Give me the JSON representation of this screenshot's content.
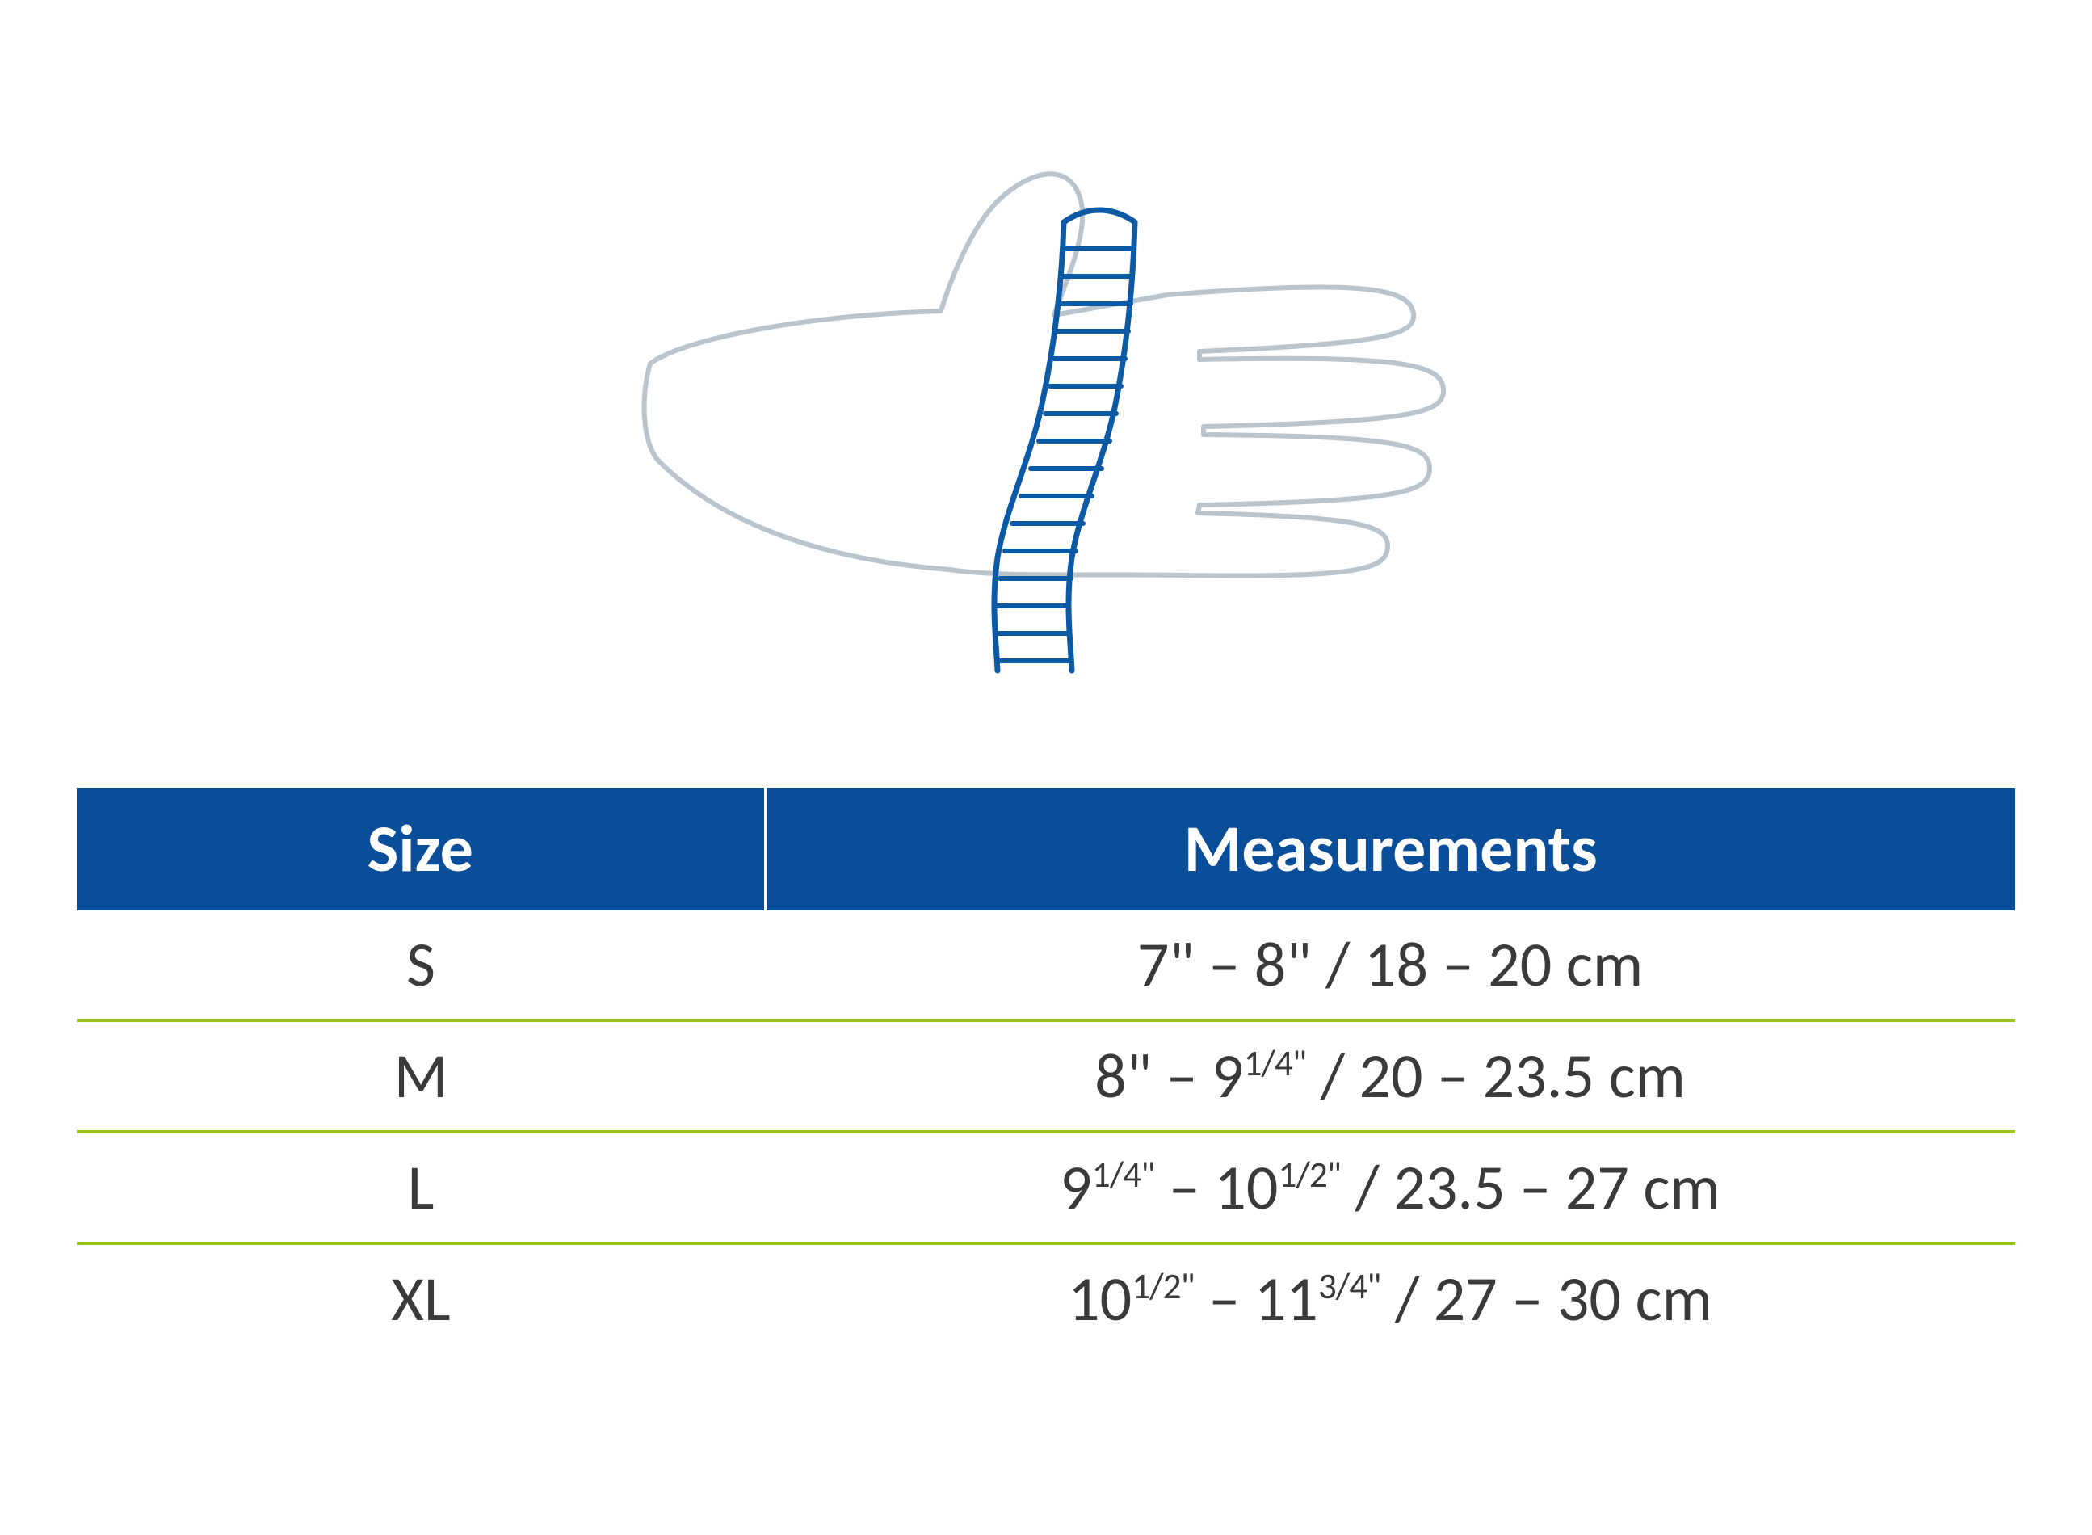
{
  "diagram": {
    "hand_outline_color": "#b9c4cc",
    "hand_outline_width": 6,
    "tape_stroke_color": "#0c5aa6",
    "tape_stroke_width": 7,
    "tape_fill_color": "#ffffff"
  },
  "table": {
    "header_bg_color": "#0a4d99",
    "header_text_color": "#ffffff",
    "header_font_size": 82,
    "header_font_weight": 700,
    "body_font_size": 78,
    "body_text_color": "#3a3a3a",
    "row_divider_color": "#98c21d",
    "row_divider_width": 4,
    "columns": [
      "Size",
      "Measurements"
    ],
    "col_widths_pct": [
      35.5,
      64.5
    ],
    "rows": [
      {
        "size": "S",
        "in_from": {
          "whole": "7"
        },
        "in_to": {
          "whole": "8"
        },
        "cm_from": "18",
        "cm_to": "20"
      },
      {
        "size": "M",
        "in_from": {
          "whole": "8"
        },
        "in_to": {
          "whole": "9",
          "frac": "1/4"
        },
        "cm_from": "20",
        "cm_to": "23.5"
      },
      {
        "size": "L",
        "in_from": {
          "whole": "9",
          "frac": "1/4"
        },
        "in_to": {
          "whole": "10",
          "frac": "1/2"
        },
        "cm_from": "23.5",
        "cm_to": "27"
      },
      {
        "size": "XL",
        "in_from": {
          "whole": "10",
          "frac": "1/2"
        },
        "in_to": {
          "whole": "11",
          "frac": "3/4"
        },
        "cm_from": "27",
        "cm_to": "30"
      }
    ]
  }
}
